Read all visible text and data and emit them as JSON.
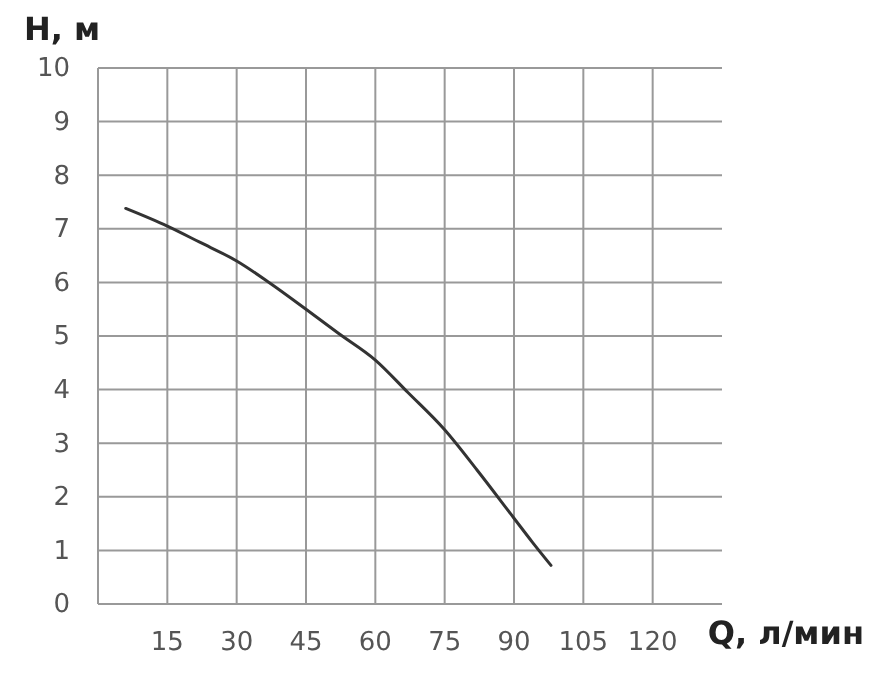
{
  "chart_data": {
    "type": "line",
    "xlabel": "Q, л/мин",
    "ylabel": "H, м",
    "x": [
      6,
      15,
      22,
      30,
      37,
      45,
      52,
      60,
      67,
      75,
      82,
      90,
      94,
      98
    ],
    "series": [
      {
        "color": "#333333",
        "values": [
          7.38,
          7.05,
          6.75,
          6.4,
          6.0,
          5.5,
          5.05,
          4.55,
          3.95,
          3.25,
          2.5,
          1.6,
          1.15,
          0.72
        ]
      }
    ],
    "xlim": [
      0,
      135
    ],
    "xticks": [
      15,
      30,
      45,
      60,
      75,
      90,
      105,
      120
    ],
    "ylim": [
      0,
      10
    ],
    "yticks": [
      0,
      1,
      2,
      3,
      4,
      5,
      6,
      7,
      8,
      9,
      10
    ],
    "grid": true,
    "marker": "none",
    "line_style": "solid"
  }
}
